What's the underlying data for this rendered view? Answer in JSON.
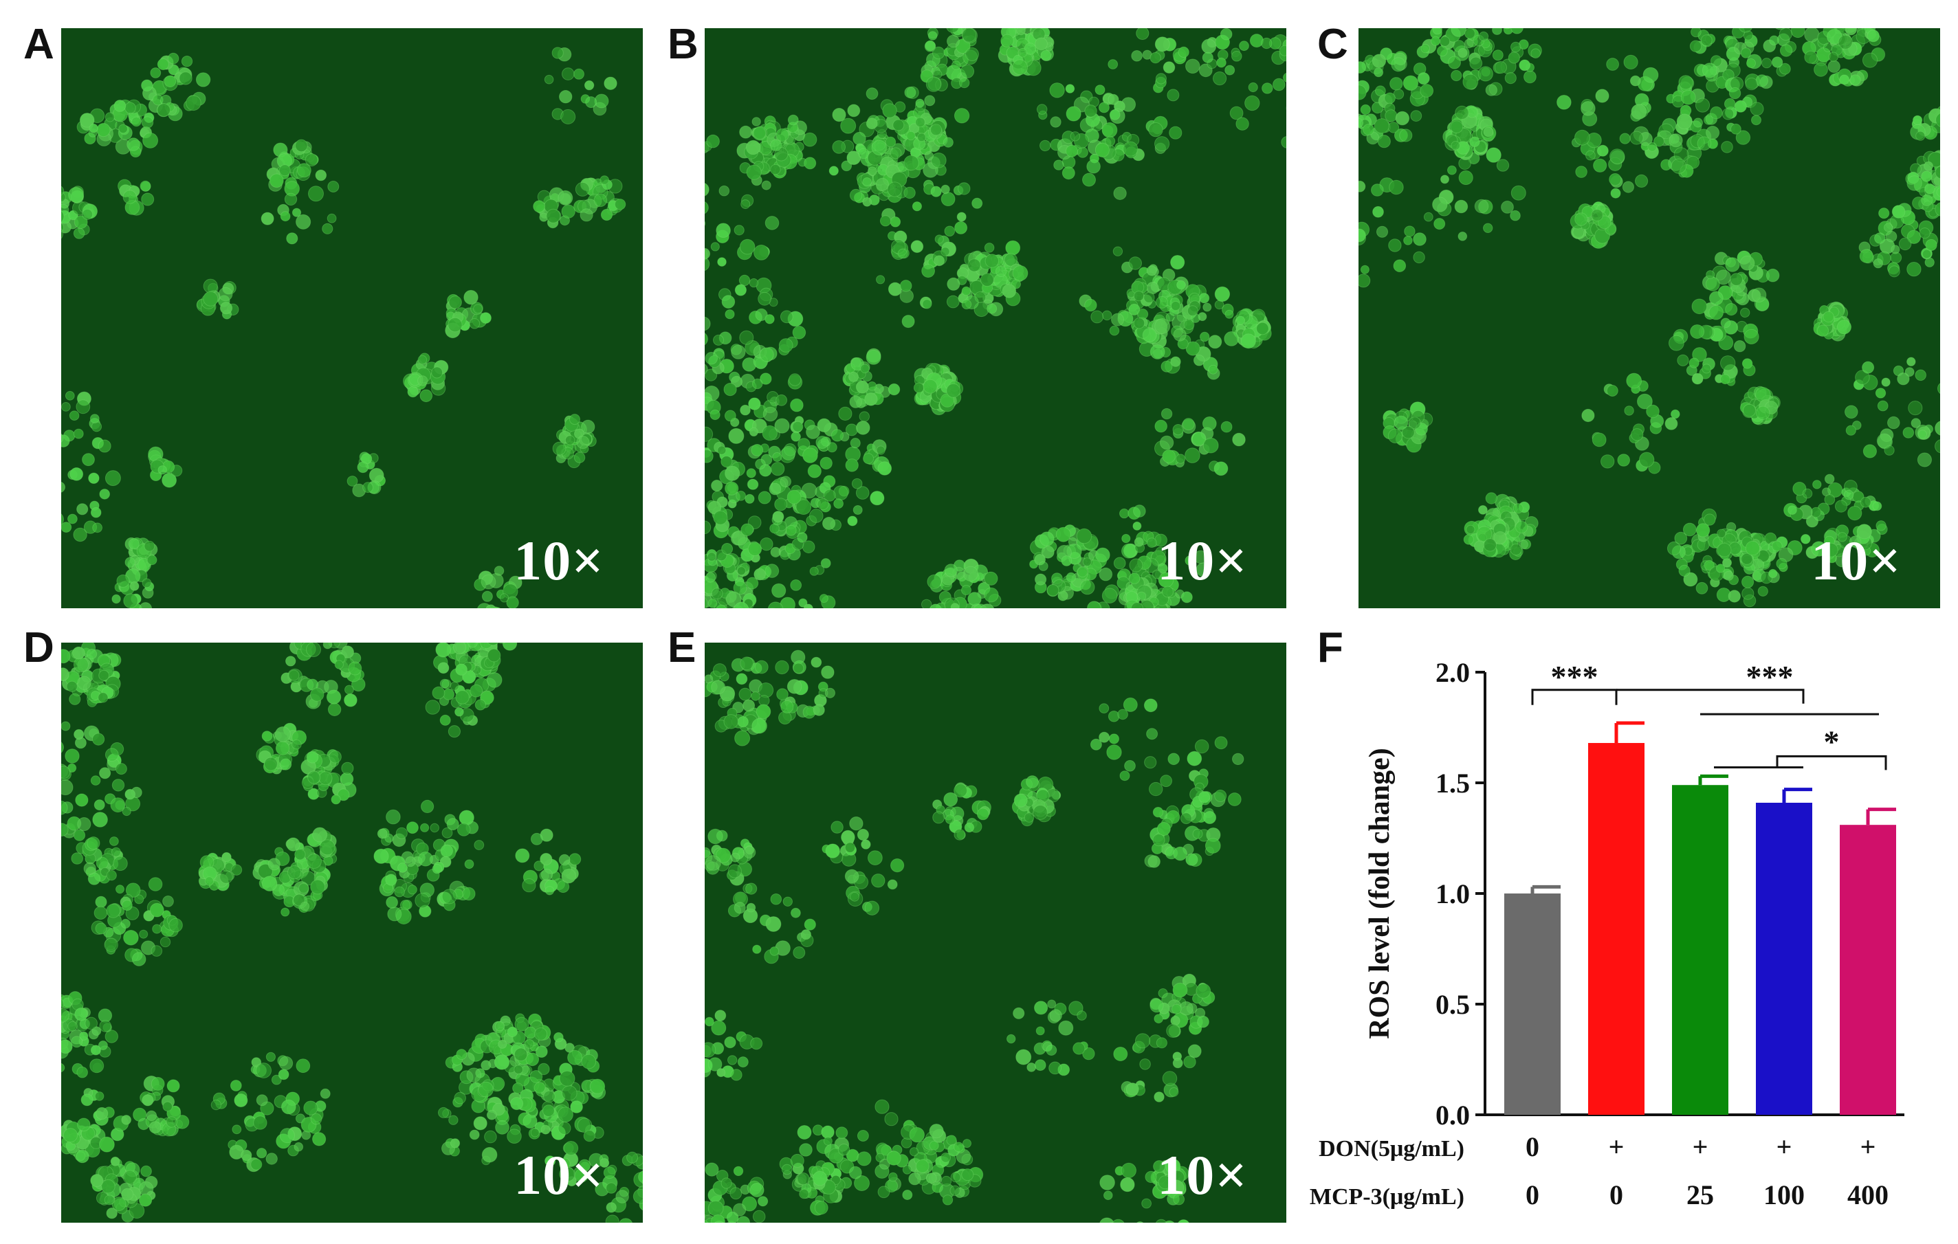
{
  "panels": [
    {
      "id": "pA",
      "letter": "A",
      "magnification": "10×"
    },
    {
      "id": "pB",
      "letter": "B",
      "magnification": "10×"
    },
    {
      "id": "pC",
      "letter": "C",
      "magnification": "10×"
    },
    {
      "id": "pD",
      "letter": "D",
      "magnification": "10×"
    },
    {
      "id": "pE",
      "letter": "E",
      "magnification": "10×"
    }
  ],
  "chart_panel_letter": "F",
  "chart_data": {
    "type": "bar",
    "ylabel": "ROS level (fold change)",
    "ylim": [
      0,
      2.0
    ],
    "yticks": [
      "0.0",
      "0.5",
      "1.0",
      "1.5",
      "2.0"
    ],
    "row_labels": [
      "DON(5μg/mL)",
      "MCP-3(μg/mL)"
    ],
    "categories": [
      {
        "don": "0",
        "mcp": "0"
      },
      {
        "don": "+",
        "mcp": "0"
      },
      {
        "don": "+",
        "mcp": "25"
      },
      {
        "don": "+",
        "mcp": "100"
      },
      {
        "don": "+",
        "mcp": "400"
      }
    ],
    "values": [
      1.0,
      1.68,
      1.49,
      1.41,
      1.31
    ],
    "errors": [
      0.03,
      0.09,
      0.04,
      0.06,
      0.07
    ],
    "colors": [
      "#6b6b6b",
      "#ff1010",
      "#0a8a0a",
      "#1a10c8",
      "#d0106a"
    ],
    "significance": [
      {
        "label": "***",
        "type": "ctrl_vs_don"
      },
      {
        "label": "***",
        "type": "don_vs_treat"
      },
      {
        "label": "*",
        "type": "mcp25_vs_mcp400"
      }
    ]
  }
}
